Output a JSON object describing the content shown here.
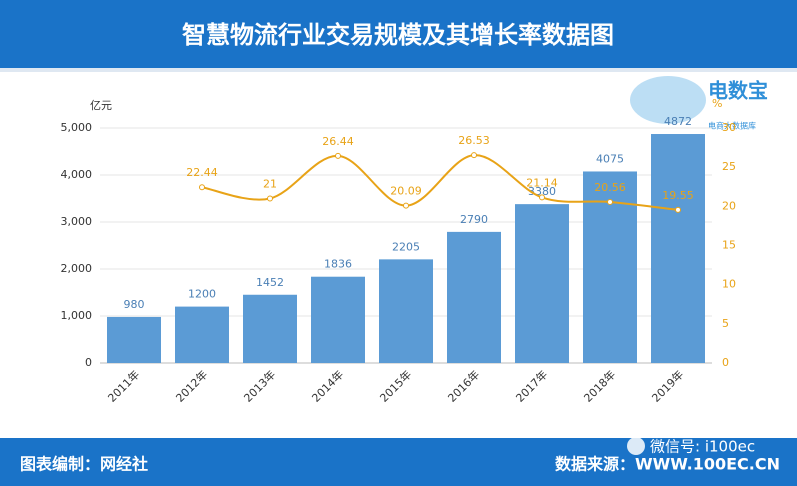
{
  "header": {
    "title": "智慧物流行业交易规模及其增长率数据图"
  },
  "footer": {
    "left": "图表编制：网经社",
    "right": "数据来源：WWW.100EC.CN",
    "watermark": "微信号: i100ec"
  },
  "logo": {
    "name": "电数宝",
    "subtitle": "电商大数据库"
  },
  "chart_data": {
    "type": "bar",
    "categories": [
      "2011年",
      "2012年",
      "2013年",
      "2014年",
      "2015年",
      "2016年",
      "2017年",
      "2018年",
      "2019年"
    ],
    "series": [
      {
        "type": "bar",
        "color": "#5b9bd5",
        "values": [
          980,
          1200,
          1452,
          1836,
          2205,
          2790,
          3380,
          4075,
          4872
        ]
      },
      {
        "type": "line",
        "axis": "y2",
        "color": "#e8a317",
        "values": [
          null,
          22.44,
          21,
          26.44,
          20.09,
          26.53,
          21.14,
          20.56,
          19.55
        ]
      }
    ],
    "y_label": "亿元",
    "y2_label": "%",
    "ylim": [
      0,
      5000
    ],
    "yticks": [
      0,
      {
        "value": 1000,
        "label": "1,000"
      },
      {
        "value": 2000,
        "label": "2,000"
      },
      {
        "value": 3000,
        "label": "3,000"
      },
      {
        "value": 4000,
        "label": "4,000"
      },
      {
        "value": 5000,
        "label": "5,000"
      }
    ],
    "y2lim": [
      0,
      30
    ],
    "y2ticks": [
      0,
      5,
      10,
      15,
      20,
      25,
      30
    ],
    "grid": true
  }
}
